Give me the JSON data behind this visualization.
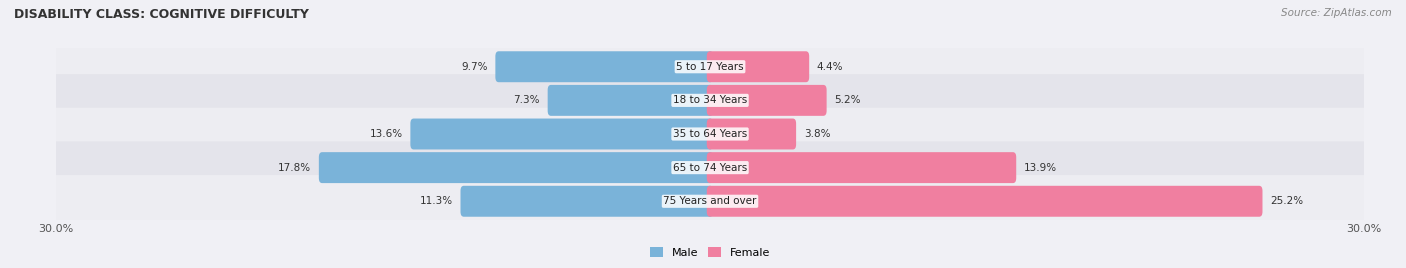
{
  "title": "DISABILITY CLASS: COGNITIVE DIFFICULTY",
  "source": "Source: ZipAtlas.com",
  "categories": [
    "5 to 17 Years",
    "18 to 34 Years",
    "35 to 64 Years",
    "65 to 74 Years",
    "75 Years and over"
  ],
  "male_values": [
    9.7,
    7.3,
    13.6,
    17.8,
    11.3
  ],
  "female_values": [
    4.4,
    5.2,
    3.8,
    13.9,
    25.2
  ],
  "x_max": 30.0,
  "male_color": "#7ab3d9",
  "female_color": "#f07fa0",
  "row_colors": [
    "#ededf2",
    "#e4e4eb"
  ],
  "title_fontsize": 9,
  "source_fontsize": 7.5,
  "axis_fontsize": 8,
  "bar_label_fontsize": 7.5,
  "category_fontsize": 7.5,
  "legend_fontsize": 8
}
